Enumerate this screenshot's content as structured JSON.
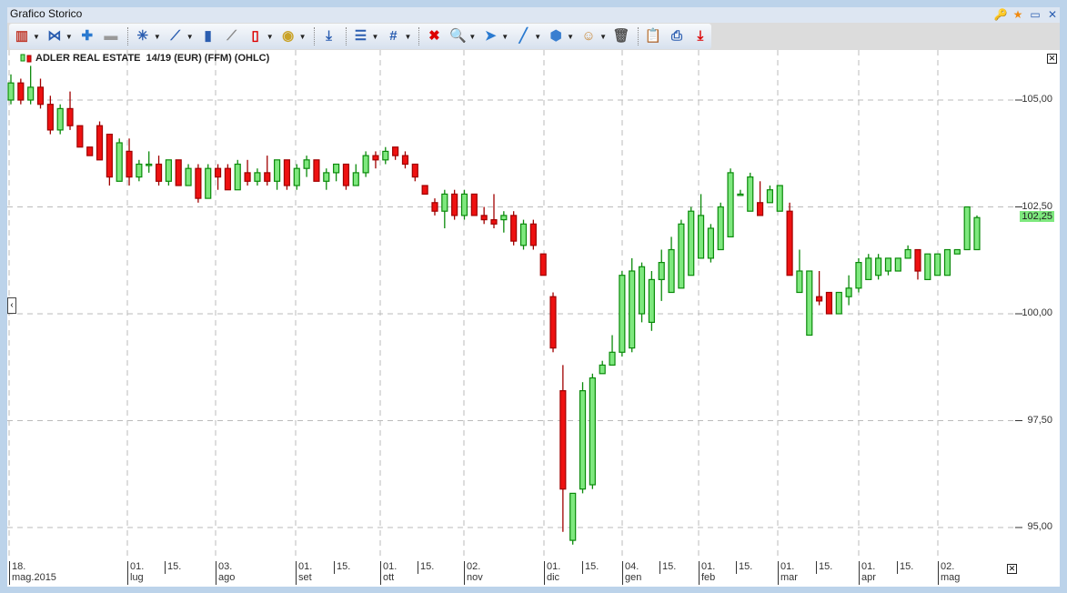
{
  "window": {
    "title": "Grafico Storico",
    "buttons": [
      {
        "name": "key-folder-icon",
        "glyph": "🔑"
      },
      {
        "name": "star-icon",
        "glyph": "★"
      },
      {
        "name": "maximize-icon",
        "glyph": "▭"
      },
      {
        "name": "close-icon",
        "glyph": "✕"
      }
    ]
  },
  "toolbar": [
    {
      "icon": "chart-type-icon",
      "glyph": "▥",
      "color": "#c0392b",
      "dropdown": true
    },
    {
      "icon": "compare-icon",
      "glyph": "⋈",
      "color": "#2a5db0",
      "dropdown": true
    },
    {
      "icon": "add-indicator-icon",
      "glyph": "✚",
      "color": "#2a7ad0",
      "dropdown": false
    },
    {
      "icon": "remove-indicator-icon",
      "glyph": "▬",
      "color": "#999",
      "dropdown": false,
      "sep": true
    },
    {
      "icon": "new-study-icon",
      "glyph": "✳",
      "color": "#2a5db0",
      "dropdown": true
    },
    {
      "icon": "trend-icon",
      "glyph": "⟋",
      "color": "#2a5db0",
      "dropdown": true
    },
    {
      "icon": "volume-icon",
      "glyph": "▮",
      "color": "#2a5db0",
      "dropdown": false
    },
    {
      "icon": "overlay-icon",
      "glyph": "⟋",
      "color": "#888",
      "dropdown": false
    },
    {
      "icon": "candle-icon",
      "glyph": "▯",
      "color": "#d00",
      "dropdown": true
    },
    {
      "icon": "currency-icon",
      "glyph": "◉",
      "color": "#c9a227",
      "dropdown": true,
      "sep": true
    },
    {
      "icon": "signal-icon",
      "glyph": "⤓",
      "color": "#2a5db0",
      "dropdown": false,
      "sep": true
    },
    {
      "icon": "lines-icon",
      "glyph": "☰",
      "color": "#2a5db0",
      "dropdown": true
    },
    {
      "icon": "grid-icon",
      "glyph": "#",
      "color": "#2a5db0",
      "dropdown": true,
      "sep": true
    },
    {
      "icon": "delete-drawings-icon",
      "glyph": "✖",
      "color": "#d00",
      "dropdown": false
    },
    {
      "icon": "zoom-icon",
      "glyph": "🔍",
      "color": "#2a5db0",
      "dropdown": true
    },
    {
      "icon": "pointer-icon",
      "glyph": "➤",
      "color": "#2a7ad0",
      "dropdown": true
    },
    {
      "icon": "line-tool-icon",
      "glyph": "╱",
      "color": "#2a7ad0",
      "dropdown": true
    },
    {
      "icon": "shape-icon",
      "glyph": "⬢",
      "color": "#3a7fd0",
      "dropdown": true
    },
    {
      "icon": "face-icon",
      "glyph": "☺",
      "color": "#c8893a",
      "dropdown": true
    },
    {
      "icon": "trash-icon",
      "glyph": "🗑",
      "color": "#555",
      "dropdown": false,
      "sep": true
    },
    {
      "icon": "clipboard-icon",
      "glyph": "📋",
      "color": "#d00",
      "dropdown": false
    },
    {
      "icon": "print-icon",
      "glyph": "⎙",
      "color": "#2a5db0",
      "dropdown": false
    },
    {
      "icon": "export-icon",
      "glyph": "⤓",
      "color": "#d00",
      "dropdown": false
    }
  ],
  "chart_data": {
    "type": "ohlc",
    "title": "ADLER REAL ESTATE  14/19 (EUR) (FFM) (OHLC)",
    "ylim": [
      94.5,
      106
    ],
    "yticks": [
      "105,00",
      "102,50",
      "100,00",
      "97,50",
      "95,00"
    ],
    "ytick_values": [
      105,
      102.5,
      100,
      97.5,
      95
    ],
    "last_price_label": "102,25",
    "last_price": 102.25,
    "colors": {
      "up": "#7ee87e",
      "up_border": "#0a8a0a",
      "down": "#ee1111",
      "down_border": "#a00000"
    },
    "grid": true,
    "xticks": [
      {
        "day": "18.",
        "month": "mag.2015",
        "major": true
      },
      {
        "day": "01.",
        "month": "lug",
        "major": true
      },
      {
        "day": "15.",
        "month": "",
        "major": false
      },
      {
        "day": "03.",
        "month": "ago",
        "major": true
      },
      {
        "day": "01.",
        "month": "set",
        "major": true
      },
      {
        "day": "15.",
        "month": "",
        "major": false
      },
      {
        "day": "01.",
        "month": "ott",
        "major": true
      },
      {
        "day": "15.",
        "month": "",
        "major": false
      },
      {
        "day": "02.",
        "month": "nov",
        "major": true
      },
      {
        "day": "01.",
        "month": "dic",
        "major": true
      },
      {
        "day": "15.",
        "month": "",
        "major": false
      },
      {
        "day": "04.",
        "month": "gen",
        "major": true
      },
      {
        "day": "15.",
        "month": "",
        "major": false
      },
      {
        "day": "01.",
        "month": "feb",
        "major": true
      },
      {
        "day": "15.",
        "month": "",
        "major": false
      },
      {
        "day": "01.",
        "month": "mar",
        "major": true
      },
      {
        "day": "15.",
        "month": "",
        "major": false
      },
      {
        "day": "01.",
        "month": "apr",
        "major": true
      },
      {
        "day": "15.",
        "month": "",
        "major": false
      },
      {
        "day": "02.",
        "month": "mag",
        "major": true
      }
    ],
    "candles": [
      [
        105.0,
        105.6,
        104.9,
        105.4
      ],
      [
        105.4,
        105.5,
        104.9,
        105.0
      ],
      [
        105.0,
        105.8,
        104.9,
        105.3
      ],
      [
        105.3,
        105.5,
        104.8,
        104.9
      ],
      [
        104.9,
        105.1,
        104.2,
        104.3
      ],
      [
        104.3,
        104.9,
        104.2,
        104.8
      ],
      [
        104.8,
        105.2,
        104.3,
        104.4
      ],
      [
        104.4,
        104.4,
        103.9,
        103.9
      ],
      [
        103.9,
        103.9,
        103.7,
        103.7
      ],
      [
        104.4,
        104.5,
        103.6,
        103.6
      ],
      [
        104.2,
        104.2,
        103.0,
        103.2
      ],
      [
        103.1,
        104.1,
        103.1,
        104.0
      ],
      [
        103.8,
        104.1,
        103.0,
        103.2
      ],
      [
        103.2,
        103.6,
        103.1,
        103.5
      ],
      [
        103.5,
        103.8,
        103.3,
        103.5
      ],
      [
        103.5,
        103.7,
        103.0,
        103.1
      ],
      [
        103.1,
        103.6,
        103.0,
        103.6
      ],
      [
        103.6,
        103.6,
        103.0,
        103.0
      ],
      [
        103.0,
        103.5,
        103.0,
        103.4
      ],
      [
        103.4,
        103.5,
        102.6,
        102.7
      ],
      [
        102.7,
        103.5,
        102.7,
        103.4
      ],
      [
        103.4,
        103.5,
        102.9,
        103.2
      ],
      [
        103.4,
        103.5,
        102.9,
        102.9
      ],
      [
        102.9,
        103.6,
        102.9,
        103.5
      ],
      [
        103.3,
        103.6,
        103.0,
        103.1
      ],
      [
        103.1,
        103.4,
        103.0,
        103.3
      ],
      [
        103.3,
        103.7,
        103.0,
        103.1
      ],
      [
        103.1,
        103.6,
        102.9,
        103.6
      ],
      [
        103.6,
        103.6,
        102.9,
        103.0
      ],
      [
        103.0,
        103.5,
        102.9,
        103.4
      ],
      [
        103.4,
        103.7,
        103.2,
        103.6
      ],
      [
        103.6,
        103.6,
        103.1,
        103.1
      ],
      [
        103.1,
        103.4,
        102.9,
        103.3
      ],
      [
        103.3,
        103.5,
        103.1,
        103.5
      ],
      [
        103.5,
        103.5,
        102.9,
        103.0
      ],
      [
        103.0,
        103.5,
        103.0,
        103.3
      ],
      [
        103.3,
        103.8,
        103.2,
        103.7
      ],
      [
        103.7,
        103.8,
        103.4,
        103.6
      ],
      [
        103.6,
        103.9,
        103.5,
        103.8
      ],
      [
        103.9,
        103.9,
        103.6,
        103.7
      ],
      [
        103.7,
        103.8,
        103.4,
        103.5
      ],
      [
        103.5,
        103.5,
        103.1,
        103.2
      ],
      [
        103.0,
        103.0,
        102.8,
        102.8
      ],
      [
        102.6,
        102.7,
        102.3,
        102.4
      ],
      [
        102.4,
        102.9,
        102.0,
        102.8
      ],
      [
        102.8,
        102.9,
        102.2,
        102.3
      ],
      [
        102.3,
        102.9,
        102.2,
        102.8
      ],
      [
        102.8,
        102.8,
        102.3,
        102.3
      ],
      [
        102.3,
        102.5,
        102.1,
        102.2
      ],
      [
        102.2,
        102.8,
        102.0,
        102.1
      ],
      [
        102.2,
        102.4,
        101.9,
        102.3
      ],
      [
        102.3,
        102.4,
        101.6,
        101.7
      ],
      [
        101.6,
        102.2,
        101.5,
        102.1
      ],
      [
        102.1,
        102.2,
        101.5,
        101.6
      ],
      [
        101.4,
        101.4,
        100.9,
        100.9
      ],
      [
        100.4,
        100.5,
        99.1,
        99.2
      ],
      [
        98.2,
        98.8,
        94.9,
        95.9
      ],
      [
        94.7,
        95.8,
        94.6,
        95.8
      ],
      [
        95.9,
        98.4,
        95.8,
        98.2
      ],
      [
        96.0,
        98.6,
        95.9,
        98.5
      ],
      [
        98.6,
        98.9,
        98.6,
        98.8
      ],
      [
        98.8,
        99.5,
        98.8,
        99.1
      ],
      [
        99.1,
        101.0,
        99.0,
        100.9
      ],
      [
        99.2,
        101.3,
        99.1,
        101.0
      ],
      [
        100.0,
        101.2,
        99.8,
        101.1
      ],
      [
        99.8,
        101.0,
        99.6,
        100.8
      ],
      [
        100.8,
        101.5,
        100.3,
        101.2
      ],
      [
        100.5,
        101.8,
        100.5,
        101.5
      ],
      [
        100.6,
        102.2,
        100.6,
        102.1
      ],
      [
        100.9,
        102.5,
        100.9,
        102.4
      ],
      [
        101.3,
        102.8,
        101.3,
        102.3
      ],
      [
        101.3,
        102.1,
        101.2,
        102.0
      ],
      [
        101.5,
        102.6,
        101.5,
        102.5
      ],
      [
        101.8,
        103.4,
        101.8,
        103.3
      ],
      [
        102.8,
        102.9,
        102.8,
        102.8
      ],
      [
        102.4,
        103.3,
        102.4,
        103.2
      ],
      [
        102.6,
        103.1,
        102.3,
        102.3
      ],
      [
        102.6,
        103.0,
        102.6,
        102.9
      ],
      [
        102.4,
        103.0,
        102.4,
        103.0
      ],
      [
        102.4,
        102.6,
        100.9,
        100.9
      ],
      [
        100.5,
        101.5,
        100.5,
        101.0
      ],
      [
        99.5,
        101.0,
        99.5,
        101.0
      ],
      [
        100.4,
        101.0,
        100.2,
        100.3
      ],
      [
        100.5,
        100.5,
        100.0,
        100.0
      ],
      [
        100.0,
        100.5,
        100.0,
        100.5
      ],
      [
        100.4,
        100.9,
        100.2,
        100.6
      ],
      [
        100.6,
        101.3,
        100.5,
        101.2
      ],
      [
        100.8,
        101.4,
        100.8,
        101.3
      ],
      [
        100.9,
        101.4,
        100.8,
        101.3
      ],
      [
        101.0,
        101.3,
        100.9,
        101.3
      ],
      [
        101.0,
        101.3,
        101.0,
        101.3
      ],
      [
        101.3,
        101.6,
        101.3,
        101.5
      ],
      [
        101.5,
        101.5,
        100.8,
        101.0
      ],
      [
        100.8,
        101.4,
        100.8,
        101.4
      ],
      [
        100.9,
        101.4,
        100.9,
        101.4
      ],
      [
        100.9,
        101.5,
        100.9,
        101.5
      ],
      [
        101.4,
        101.5,
        101.4,
        101.5
      ],
      [
        101.5,
        102.5,
        101.5,
        102.5
      ],
      [
        101.5,
        102.3,
        101.5,
        102.25
      ]
    ]
  }
}
